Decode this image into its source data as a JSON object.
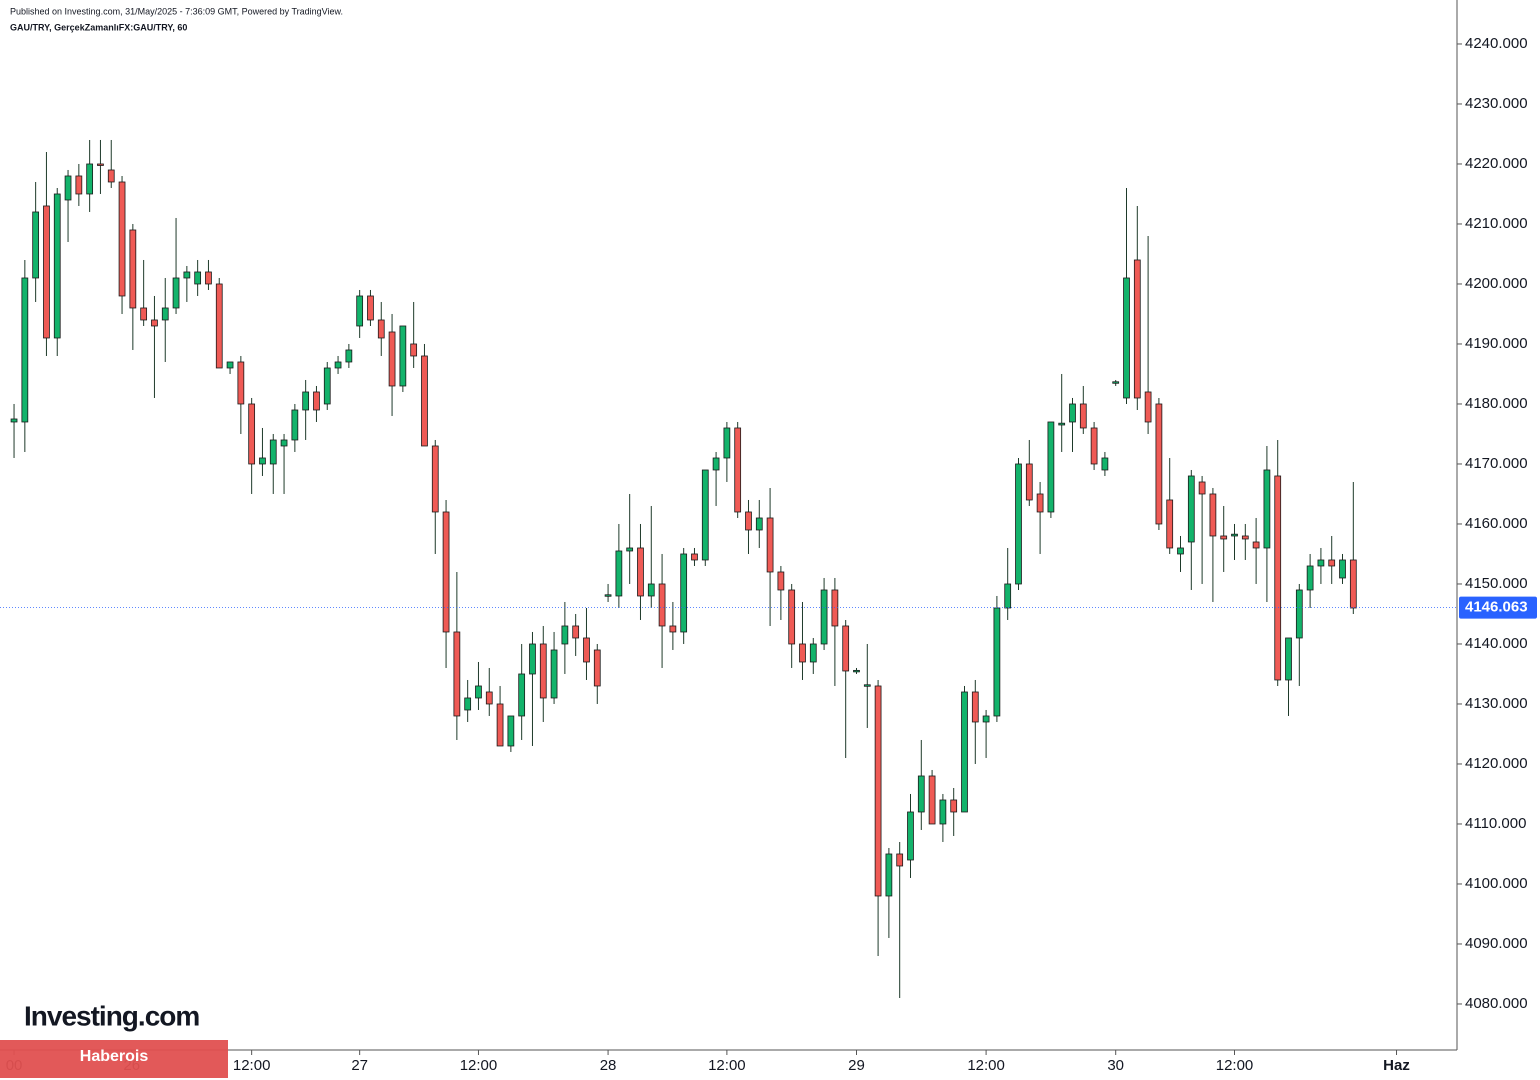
{
  "chart_data": {
    "type": "candlestick",
    "header": "Published on Investing.com, 31/May/2025 - 7:36:09 GMT, Powered by TradingView.",
    "title": "GAU/TRY, GerçekZamanlıFX:GAU/TRY, 60",
    "logo": "Investing.com",
    "banner": "Haberois",
    "up_color": "#13b36b",
    "down_color": "#ef5a55",
    "line_color": "#2962ff",
    "last_price": {
      "value": 4146.063,
      "label": "4146.063"
    },
    "xlim": [
      -1.3,
      133.6
    ],
    "ylim": [
      4072.33,
      4247.33
    ],
    "xticks": [
      {
        "value": 0,
        "label": "00"
      },
      {
        "value": 10.9,
        "label": "26"
      },
      {
        "value": 22,
        "label": "12:00"
      },
      {
        "value": 32,
        "label": "27"
      },
      {
        "value": 43,
        "label": "12:00"
      },
      {
        "value": 55,
        "label": "28"
      },
      {
        "value": 66,
        "label": "12:00"
      },
      {
        "value": 78,
        "label": "29"
      },
      {
        "value": 90,
        "label": "12:00"
      },
      {
        "value": 102,
        "label": "30"
      },
      {
        "value": 113,
        "label": "12:00"
      },
      {
        "value": 128,
        "label": "Haz"
      }
    ],
    "yticks": [
      {
        "value": 4080,
        "label": "4080.000"
      },
      {
        "value": 4090,
        "label": "4090.000"
      },
      {
        "value": 4100,
        "label": "4100.000"
      },
      {
        "value": 4110,
        "label": "4110.000"
      },
      {
        "value": 4120,
        "label": "4120.000"
      },
      {
        "value": 4130,
        "label": "4130.000"
      },
      {
        "value": 4140,
        "label": "4140.000"
      },
      {
        "value": 4150,
        "label": "4150.000"
      },
      {
        "value": 4160,
        "label": "4160.000"
      },
      {
        "value": 4170,
        "label": "4170.000"
      },
      {
        "value": 4180,
        "label": "4180.000"
      },
      {
        "value": 4190,
        "label": "4190.000"
      },
      {
        "value": 4200,
        "label": "4200.000"
      },
      {
        "value": 4210,
        "label": "4210.000"
      },
      {
        "value": 4220,
        "label": "4220.000"
      },
      {
        "value": 4230,
        "label": "4230.000"
      },
      {
        "value": 4240,
        "label": "4240.000"
      }
    ],
    "x": [
      0,
      1,
      2,
      3,
      4,
      5,
      6,
      7,
      8,
      9,
      10,
      11,
      12,
      13,
      14,
      15,
      16,
      17,
      18,
      19,
      20,
      21,
      22,
      23,
      24,
      25,
      26,
      27,
      28,
      29,
      30,
      31,
      32,
      33,
      34,
      35,
      36,
      37,
      38,
      39,
      40,
      41,
      42,
      43,
      44,
      45,
      46,
      47,
      48,
      49,
      50,
      51,
      52,
      53,
      54,
      55,
      56,
      57,
      58,
      59,
      60,
      61,
      62,
      63,
      64,
      65,
      66,
      67,
      68,
      69,
      70,
      71,
      72,
      73,
      74,
      75,
      76,
      77,
      78,
      79,
      80,
      81,
      82,
      83,
      84,
      85,
      86,
      87,
      88,
      89,
      90,
      91,
      92,
      93,
      94,
      95,
      96,
      97,
      98,
      99,
      100,
      101,
      102,
      103,
      104,
      105,
      106,
      107,
      108,
      109,
      110,
      111,
      112,
      113,
      114,
      115,
      116,
      117,
      118,
      119,
      120,
      121,
      122,
      123,
      124
    ],
    "open": [
      4177,
      4177,
      4201,
      4213,
      4191,
      4214,
      4218,
      4215,
      4220,
      4219,
      4217,
      4209,
      4196,
      4194,
      4194,
      4196,
      4201,
      4200,
      4202,
      4200,
      4186,
      4187,
      4180,
      4170,
      4170,
      4173,
      4174,
      4179,
      4182,
      4180,
      4186,
      4187,
      4193,
      4198,
      4194,
      4192,
      4183,
      4190,
      4188,
      4173,
      4162,
      4142,
      4129,
      4131,
      4132,
      4130,
      4123,
      4128,
      4135,
      4140,
      4131,
      4140,
      4143,
      4141,
      4139,
      4148,
      4148,
      4155.5,
      4156,
      4148,
      4150,
      4143,
      4142,
      4155,
      4154,
      4169,
      4171,
      4176,
      4162,
      4159,
      4161,
      4152,
      4149,
      4140,
      4137,
      4140,
      4149,
      4143,
      4135.5,
      4133,
      4133,
      4098,
      4105,
      4104,
      4112,
      4118,
      4110,
      4114,
      4112,
      4132,
      4127,
      4128,
      4146,
      4150,
      4170,
      4165,
      4162,
      4176.5,
      4177,
      4180,
      4176,
      4169,
      4183.5,
      4181,
      4204,
      4182,
      4180,
      4164,
      4155,
      4157,
      4167,
      4165,
      4158,
      4158,
      4158,
      4157,
      4156,
      4168,
      4134,
      4141,
      4149,
      4153,
      4154,
      4151,
      4154
    ],
    "high": [
      4180,
      4204,
      4217,
      4222,
      4216,
      4219,
      4220,
      4224,
      4224,
      4224,
      4218,
      4210,
      4204,
      4198,
      4201,
      4211,
      4203,
      4204,
      4204,
      4201,
      4187,
      4188,
      4181,
      4176,
      4175,
      4175,
      4180,
      4184,
      4183,
      4187,
      4188,
      4190,
      4199,
      4199,
      4197,
      4195,
      4193,
      4197,
      4190,
      4174,
      4164,
      4152,
      4134,
      4137,
      4136,
      4133,
      4128,
      4140,
      4142,
      4143,
      4142,
      4147,
      4145,
      4146,
      4140,
      4150,
      4160,
      4165,
      4160,
      4163,
      4155,
      4147,
      4156,
      4156,
      4169,
      4172,
      4177,
      4177,
      4164,
      4164,
      4166,
      4153,
      4150,
      4147,
      4141,
      4151,
      4151,
      4144,
      4136,
      4140,
      4134,
      4106,
      4107,
      4115,
      4124,
      4119,
      4115,
      4116,
      4133,
      4134,
      4129,
      4148,
      4156,
      4171,
      4174,
      4167,
      4177,
      4185,
      4181,
      4183,
      4177,
      4172,
      4184,
      4216,
      4213,
      4208,
      4181,
      4171,
      4158,
      4169,
      4168,
      4166,
      4163,
      4160,
      4160,
      4161,
      4173,
      4174,
      4141,
      4150,
      4155,
      4156,
      4158,
      4155,
      4167
    ],
    "low": [
      4171,
      4172,
      4197,
      4188,
      4188,
      4207,
      4213,
      4212,
      4215,
      4216,
      4195,
      4189,
      4193,
      4181,
      4187,
      4195,
      4197,
      4198,
      4199,
      4186,
      4185,
      4175,
      4165,
      4168,
      4165,
      4165,
      4172,
      4174,
      4177,
      4179,
      4185,
      4186,
      4191,
      4193,
      4188,
      4178,
      4182,
      4186,
      4173,
      4155,
      4136,
      4124,
      4127,
      4129,
      4128,
      4123,
      4122,
      4124,
      4123,
      4127,
      4130,
      4135,
      4138,
      4134,
      4130,
      4147,
      4146,
      4150,
      4144,
      4146,
      4136,
      4139,
      4140,
      4153,
      4153,
      4163,
      4167,
      4161,
      4155,
      4156,
      4143,
      4144,
      4136,
      4134,
      4135,
      4139,
      4133,
      4121,
      4135,
      4126,
      4088,
      4091,
      4081,
      4101,
      4109,
      4110,
      4107,
      4108,
      4112,
      4120,
      4121,
      4127,
      4144,
      4149,
      4163,
      4155,
      4161,
      4172,
      4172,
      4175,
      4169,
      4168,
      4183,
      4180,
      4179,
      4175,
      4159,
      4155,
      4152,
      4149,
      4150,
      4147,
      4152,
      4154,
      4154,
      4150,
      4147,
      4133,
      4128,
      4133,
      4146,
      4150,
      4150,
      4150,
      4145
    ],
    "close": [
      4177.5,
      4201,
      4212,
      4191,
      4215,
      4218,
      4215,
      4220,
      4219.8,
      4217,
      4198,
      4196,
      4194,
      4193,
      4196,
      4201,
      4202,
      4202,
      4200,
      4186,
      4187,
      4180,
      4170,
      4171,
      4174,
      4174,
      4179,
      4182,
      4179,
      4186,
      4187,
      4189,
      4198,
      4194,
      4191,
      4183,
      4193,
      4188,
      4173,
      4162,
      4142,
      4128,
      4131,
      4133,
      4130,
      4123,
      4128,
      4135,
      4140,
      4131,
      4139,
      4143,
      4141,
      4137,
      4133,
      4148.2,
      4155.5,
      4156,
      4148,
      4150,
      4143,
      4142,
      4155,
      4154,
      4169,
      4171,
      4176,
      4162,
      4159,
      4161,
      4152,
      4149,
      4140,
      4137,
      4140,
      4149,
      4143,
      4135.5,
      4135.6,
      4133.2,
      4098,
      4105,
      4103,
      4112,
      4118,
      4110,
      4114,
      4112,
      4132,
      4127,
      4128,
      4146,
      4150,
      4170,
      4164,
      4162,
      4177,
      4176.8,
      4180,
      4176,
      4170,
      4171,
      4183.7,
      4201,
      4181,
      4177,
      4160,
      4156,
      4156,
      4168,
      4165,
      4158,
      4157.5,
      4158.3,
      4157.5,
      4156,
      4169,
      4134,
      4141,
      4149,
      4153,
      4154,
      4153,
      4154,
      4146
    ]
  }
}
